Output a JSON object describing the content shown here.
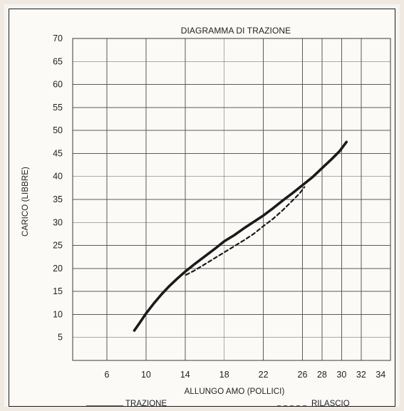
{
  "chart_data": {
    "type": "line",
    "title": "DIAGRAMMA DI TRAZIONE",
    "xlabel": "ALLUNGO AMO (POLLICI)",
    "ylabel": "CARICO (LIBBRE)",
    "xlim": [
      2.5,
      35
    ],
    "ylim": [
      0,
      70
    ],
    "x_ticks": [
      6,
      10,
      14,
      18,
      22,
      26,
      28,
      30,
      32,
      34
    ],
    "y_ticks": [
      5,
      10,
      15,
      20,
      25,
      30,
      35,
      40,
      45,
      50,
      55,
      60,
      65,
      70
    ],
    "x_tick_labels": [
      "6",
      "10",
      "14",
      "18",
      "22",
      "26",
      "28",
      "30",
      "32",
      "34"
    ],
    "y_tick_labels": [
      "5",
      "10",
      "15",
      "20",
      "25",
      "30",
      "35",
      "40",
      "45",
      "50",
      "55",
      "60",
      "65",
      "70"
    ],
    "vertical_gridlines": [
      2.5,
      6,
      10,
      14,
      18,
      22,
      26,
      28,
      30,
      32,
      35
    ],
    "horizontal_gridlines": [
      0,
      5,
      10,
      15,
      20,
      25,
      30,
      35,
      40,
      45,
      50,
      55,
      60,
      65,
      70
    ],
    "grid": true,
    "legend_position": "bottom",
    "series": [
      {
        "name": "TRAZIONE",
        "style": "solid",
        "color": "#1a1a1a",
        "x": [
          8.8,
          9.3,
          10.0,
          10.8,
          11.6,
          12.4,
          13.2,
          14.0,
          15.0,
          16.0,
          17.0,
          18.0,
          19.0,
          20.0,
          21.0,
          22.0,
          23.0,
          24.0,
          25.0,
          26.0,
          27.0,
          28.0,
          29.0,
          29.8,
          30.5
        ],
        "y": [
          6.5,
          8.0,
          10.2,
          12.4,
          14.4,
          16.2,
          17.8,
          19.3,
          21.0,
          22.6,
          24.2,
          25.9,
          27.2,
          28.7,
          30.1,
          31.5,
          33.1,
          34.8,
          36.4,
          38.1,
          39.8,
          41.8,
          43.8,
          45.5,
          47.5
        ]
      },
      {
        "name": "RILASCIO",
        "style": "dashed",
        "color": "#1a1a1a",
        "x": [
          14.1,
          15.0,
          16.0,
          17.0,
          18.0,
          19.0,
          20.0,
          21.0,
          22.0,
          23.0,
          24.0,
          25.0,
          25.7,
          26.2
        ],
        "y": [
          18.6,
          19.6,
          20.9,
          22.2,
          23.5,
          24.8,
          26.1,
          27.5,
          29.2,
          30.8,
          32.7,
          34.8,
          36.3,
          37.7
        ]
      }
    ]
  },
  "legend": {
    "items": [
      {
        "label": "TRAZIONE"
      },
      {
        "label": "RILASCIO"
      }
    ]
  }
}
